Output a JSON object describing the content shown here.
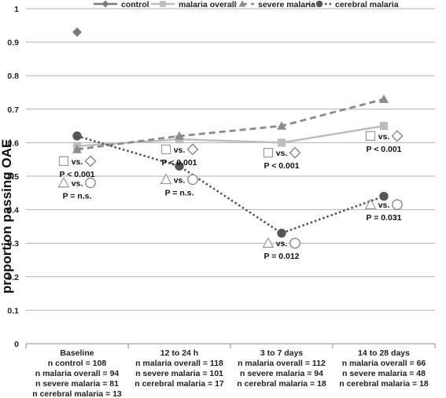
{
  "chart_data": {
    "type": "line",
    "ylabel": "proportion passing OAE",
    "xlabel": "",
    "title": "",
    "ylim": [
      0,
      1
    ],
    "yticks": [
      "0",
      "0.1",
      "0.2",
      "0.3",
      "0.4",
      "0.5",
      "0.6",
      "0.7",
      "0.8",
      "0.9",
      "1"
    ],
    "grid": true,
    "legend_position": "top",
    "categories": [
      "Baseline",
      "12 to 24 h",
      "3 to 7 days",
      "14 to 28 days"
    ],
    "category_notes": [
      [
        "n control = 108",
        "n malaria overall = 94",
        "n severe malaria = 81",
        "n cerebral malaria = 13"
      ],
      [
        "n malaria overall = 118",
        "n severe malaria = 101",
        "n cerebral malaria = 17"
      ],
      [
        "n malaria overall = 112",
        "n severe malaria = 94",
        "n cerebral malaria = 18"
      ],
      [
        "n malaria overall = 66",
        "n severe malaria = 48",
        "n cerebral malaria = 18"
      ]
    ],
    "series": [
      {
        "name": "control",
        "values": [
          0.93,
          null,
          null,
          null
        ],
        "color": "#7a7a7a",
        "marker": "diamond",
        "line": "solid"
      },
      {
        "name": "malaria overall",
        "values": [
          0.59,
          0.61,
          0.6,
          0.65
        ],
        "color": "#bdbdbd",
        "marker": "square",
        "line": "solid"
      },
      {
        "name": "severe malaria",
        "values": [
          0.58,
          0.62,
          0.65,
          0.73
        ],
        "color": "#8c8c8c",
        "marker": "triangle",
        "line": "dashed"
      },
      {
        "name": "cerebral malaria",
        "values": [
          0.62,
          0.53,
          0.33,
          0.44
        ],
        "color": "#555555",
        "marker": "circle",
        "line": "dotted"
      }
    ],
    "annotations": [
      {
        "category": 0,
        "y": 0.545,
        "left": "square",
        "right": "diamond",
        "vs": "vs.",
        "p": "P < 0.001"
      },
      {
        "category": 0,
        "y": 0.48,
        "left": "triangle",
        "right": "circle",
        "vs": "vs.",
        "p": "P = n.s."
      },
      {
        "category": 1,
        "y": 0.58,
        "left": "square",
        "right": "diamond",
        "vs": "vs.",
        "p": "P < 0.001"
      },
      {
        "category": 1,
        "y": 0.49,
        "left": "triangle",
        "right": "circle",
        "vs": "vs.",
        "p": "P = n.s."
      },
      {
        "category": 2,
        "y": 0.57,
        "left": "square",
        "right": "diamond",
        "vs": "vs.",
        "p": "P < 0.001"
      },
      {
        "category": 2,
        "y": 0.3,
        "left": "triangle",
        "right": "circle",
        "vs": "vs.",
        "p": "P = 0.012"
      },
      {
        "category": 3,
        "y": 0.62,
        "left": "square",
        "right": "diamond",
        "vs": "vs.",
        "p": "P < 0.001"
      },
      {
        "category": 3,
        "y": 0.415,
        "left": "triangle",
        "right": "circle",
        "vs": "vs.",
        "p": "P = 0.031"
      }
    ]
  }
}
